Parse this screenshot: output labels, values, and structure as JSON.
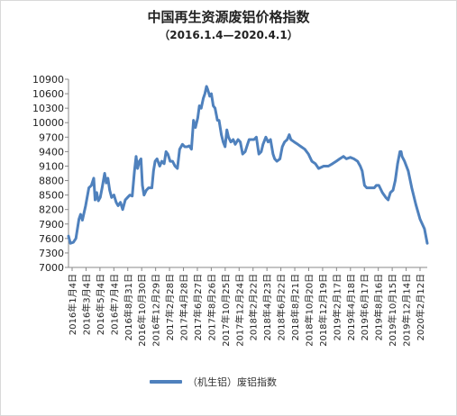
{
  "chart_data": {
    "type": "line",
    "title": "中国再生资源废铝价格指数",
    "subtitle": "（2016.1.4—2020.4.1）",
    "series_name": "（机生铝）废铝指数",
    "color": "#4f81bd",
    "ylim": [
      7000,
      10900
    ],
    "yticks": [
      7000,
      7300,
      7600,
      7900,
      8200,
      8500,
      8800,
      9100,
      9400,
      9700,
      10000,
      10300,
      10600,
      10900
    ],
    "xlim": [
      "2016-01-04",
      "2020-04-01"
    ],
    "xticks": [
      "2016年1月4日",
      "2016年3月4日",
      "2016年5月4日",
      "2016年7月4日",
      "2016年8月31日",
      "2016年10月30日",
      "2016年12月29日",
      "2017年2月28日",
      "2017年4月28日",
      "2017年6月27日",
      "2017年8月26日",
      "2017年10月25日",
      "2017年12月24日",
      "2018年2月22日",
      "2018年4月23日",
      "2018年6月22日",
      "2018年8月21日",
      "2018年10月20日",
      "2018年12月19日",
      "2019年2月17日",
      "2019年4月18日",
      "2019年6月17日",
      "2019年8月16日",
      "2019年10月15日",
      "2019年12月14日",
      "2020年2月12日"
    ],
    "points": [
      [
        "2016-01-04",
        7650
      ],
      [
        "2016-01-12",
        7500
      ],
      [
        "2016-01-25",
        7520
      ],
      [
        "2016-02-05",
        7600
      ],
      [
        "2016-02-18",
        8000
      ],
      [
        "2016-02-25",
        8100
      ],
      [
        "2016-03-04",
        7980
      ],
      [
        "2016-03-18",
        8280
      ],
      [
        "2016-04-01",
        8650
      ],
      [
        "2016-04-12",
        8700
      ],
      [
        "2016-04-22",
        8850
      ],
      [
        "2016-04-28",
        8400
      ],
      [
        "2016-05-05",
        8550
      ],
      [
        "2016-05-12",
        8380
      ],
      [
        "2016-05-20",
        8450
      ],
      [
        "2016-05-28",
        8650
      ],
      [
        "2016-06-08",
        8950
      ],
      [
        "2016-06-15",
        8750
      ],
      [
        "2016-06-22",
        8850
      ],
      [
        "2016-06-30",
        8600
      ],
      [
        "2016-07-08",
        8450
      ],
      [
        "2016-07-18",
        8500
      ],
      [
        "2016-07-28",
        8350
      ],
      [
        "2016-08-05",
        8280
      ],
      [
        "2016-08-15",
        8350
      ],
      [
        "2016-08-25",
        8200
      ],
      [
        "2016-09-05",
        8400
      ],
      [
        "2016-09-15",
        8450
      ],
      [
        "2016-09-25",
        8500
      ],
      [
        "2016-10-05",
        8480
      ],
      [
        "2016-10-15",
        9000
      ],
      [
        "2016-10-22",
        9300
      ],
      [
        "2016-10-28",
        9050
      ],
      [
        "2016-11-05",
        9200
      ],
      [
        "2016-11-12",
        9250
      ],
      [
        "2016-11-18",
        8700
      ],
      [
        "2016-11-25",
        8500
      ],
      [
        "2016-12-05",
        8600
      ],
      [
        "2016-12-15",
        8650
      ],
      [
        "2016-12-29",
        8650
      ],
      [
        "2017-01-05",
        9000
      ],
      [
        "2017-01-12",
        9200
      ],
      [
        "2017-01-20",
        9250
      ],
      [
        "2017-02-01",
        9100
      ],
      [
        "2017-02-10",
        9200
      ],
      [
        "2017-02-20",
        9150
      ],
      [
        "2017-02-28",
        9400
      ],
      [
        "2017-03-08",
        9350
      ],
      [
        "2017-03-18",
        9200
      ],
      [
        "2017-03-28",
        9200
      ],
      [
        "2017-04-08",
        9100
      ],
      [
        "2017-04-18",
        9050
      ],
      [
        "2017-04-28",
        9450
      ],
      [
        "2017-05-10",
        9550
      ],
      [
        "2017-05-20",
        9500
      ],
      [
        "2017-05-30",
        9500
      ],
      [
        "2017-06-08",
        9520
      ],
      [
        "2017-06-18",
        9450
      ],
      [
        "2017-06-27",
        10050
      ],
      [
        "2017-07-05",
        9900
      ],
      [
        "2017-07-15",
        10100
      ],
      [
        "2017-07-22",
        10350
      ],
      [
        "2017-07-30",
        10300
      ],
      [
        "2017-08-08",
        10500
      ],
      [
        "2017-08-15",
        10600
      ],
      [
        "2017-08-22",
        10750
      ],
      [
        "2017-08-26",
        10700
      ],
      [
        "2017-09-05",
        10550
      ],
      [
        "2017-09-12",
        10600
      ],
      [
        "2017-09-20",
        10350
      ],
      [
        "2017-09-28",
        10300
      ],
      [
        "2017-10-08",
        10050
      ],
      [
        "2017-10-15",
        10050
      ],
      [
        "2017-10-25",
        9750
      ],
      [
        "2017-11-02",
        9600
      ],
      [
        "2017-11-10",
        9500
      ],
      [
        "2017-11-18",
        9850
      ],
      [
        "2017-11-25",
        9700
      ],
      [
        "2017-12-05",
        9600
      ],
      [
        "2017-12-15",
        9650
      ],
      [
        "2017-12-24",
        9550
      ],
      [
        "2018-01-05",
        9650
      ],
      [
        "2018-01-15",
        9600
      ],
      [
        "2018-01-25",
        9350
      ],
      [
        "2018-02-05",
        9400
      ],
      [
        "2018-02-15",
        9550
      ],
      [
        "2018-02-22",
        9650
      ],
      [
        "2018-03-05",
        9650
      ],
      [
        "2018-03-15",
        9650
      ],
      [
        "2018-03-25",
        9700
      ],
      [
        "2018-04-05",
        9350
      ],
      [
        "2018-04-15",
        9400
      ],
      [
        "2018-04-23",
        9550
      ],
      [
        "2018-05-05",
        9700
      ],
      [
        "2018-05-15",
        9600
      ],
      [
        "2018-05-25",
        9650
      ],
      [
        "2018-06-05",
        9350
      ],
      [
        "2018-06-12",
        9250
      ],
      [
        "2018-06-22",
        9200
      ],
      [
        "2018-07-05",
        9250
      ],
      [
        "2018-07-15",
        9500
      ],
      [
        "2018-07-25",
        9600
      ],
      [
        "2018-08-05",
        9650
      ],
      [
        "2018-08-14",
        9750
      ],
      [
        "2018-08-21",
        9650
      ],
      [
        "2018-09-05",
        9600
      ],
      [
        "2018-09-20",
        9550
      ],
      [
        "2018-10-05",
        9500
      ],
      [
        "2018-10-20",
        9450
      ],
      [
        "2018-11-05",
        9350
      ],
      [
        "2018-11-20",
        9200
      ],
      [
        "2018-12-05",
        9150
      ],
      [
        "2018-12-19",
        9050
      ],
      [
        "2019-01-10",
        9100
      ],
      [
        "2019-01-30",
        9100
      ],
      [
        "2019-02-17",
        9150
      ],
      [
        "2019-03-05",
        9200
      ],
      [
        "2019-03-20",
        9250
      ],
      [
        "2019-04-05",
        9300
      ],
      [
        "2019-04-18",
        9250
      ],
      [
        "2019-05-05",
        9280
      ],
      [
        "2019-05-20",
        9250
      ],
      [
        "2019-06-05",
        9200
      ],
      [
        "2019-06-17",
        9100
      ],
      [
        "2019-06-25",
        9000
      ],
      [
        "2019-07-05",
        8700
      ],
      [
        "2019-07-15",
        8650
      ],
      [
        "2019-07-30",
        8650
      ],
      [
        "2019-08-16",
        8650
      ],
      [
        "2019-08-25",
        8700
      ],
      [
        "2019-09-05",
        8700
      ],
      [
        "2019-09-20",
        8550
      ],
      [
        "2019-10-05",
        8450
      ],
      [
        "2019-10-15",
        8400
      ],
      [
        "2019-10-25",
        8550
      ],
      [
        "2019-11-05",
        8600
      ],
      [
        "2019-11-15",
        8800
      ],
      [
        "2019-11-25",
        9150
      ],
      [
        "2019-12-05",
        9400
      ],
      [
        "2019-12-10",
        9400
      ],
      [
        "2019-12-14",
        9300
      ],
      [
        "2019-12-25",
        9200
      ],
      [
        "2020-01-10",
        9000
      ],
      [
        "2020-01-25",
        8650
      ],
      [
        "2020-02-12",
        8300
      ],
      [
        "2020-03-01",
        8000
      ],
      [
        "2020-03-20",
        7800
      ],
      [
        "2020-04-01",
        7500
      ]
    ]
  }
}
